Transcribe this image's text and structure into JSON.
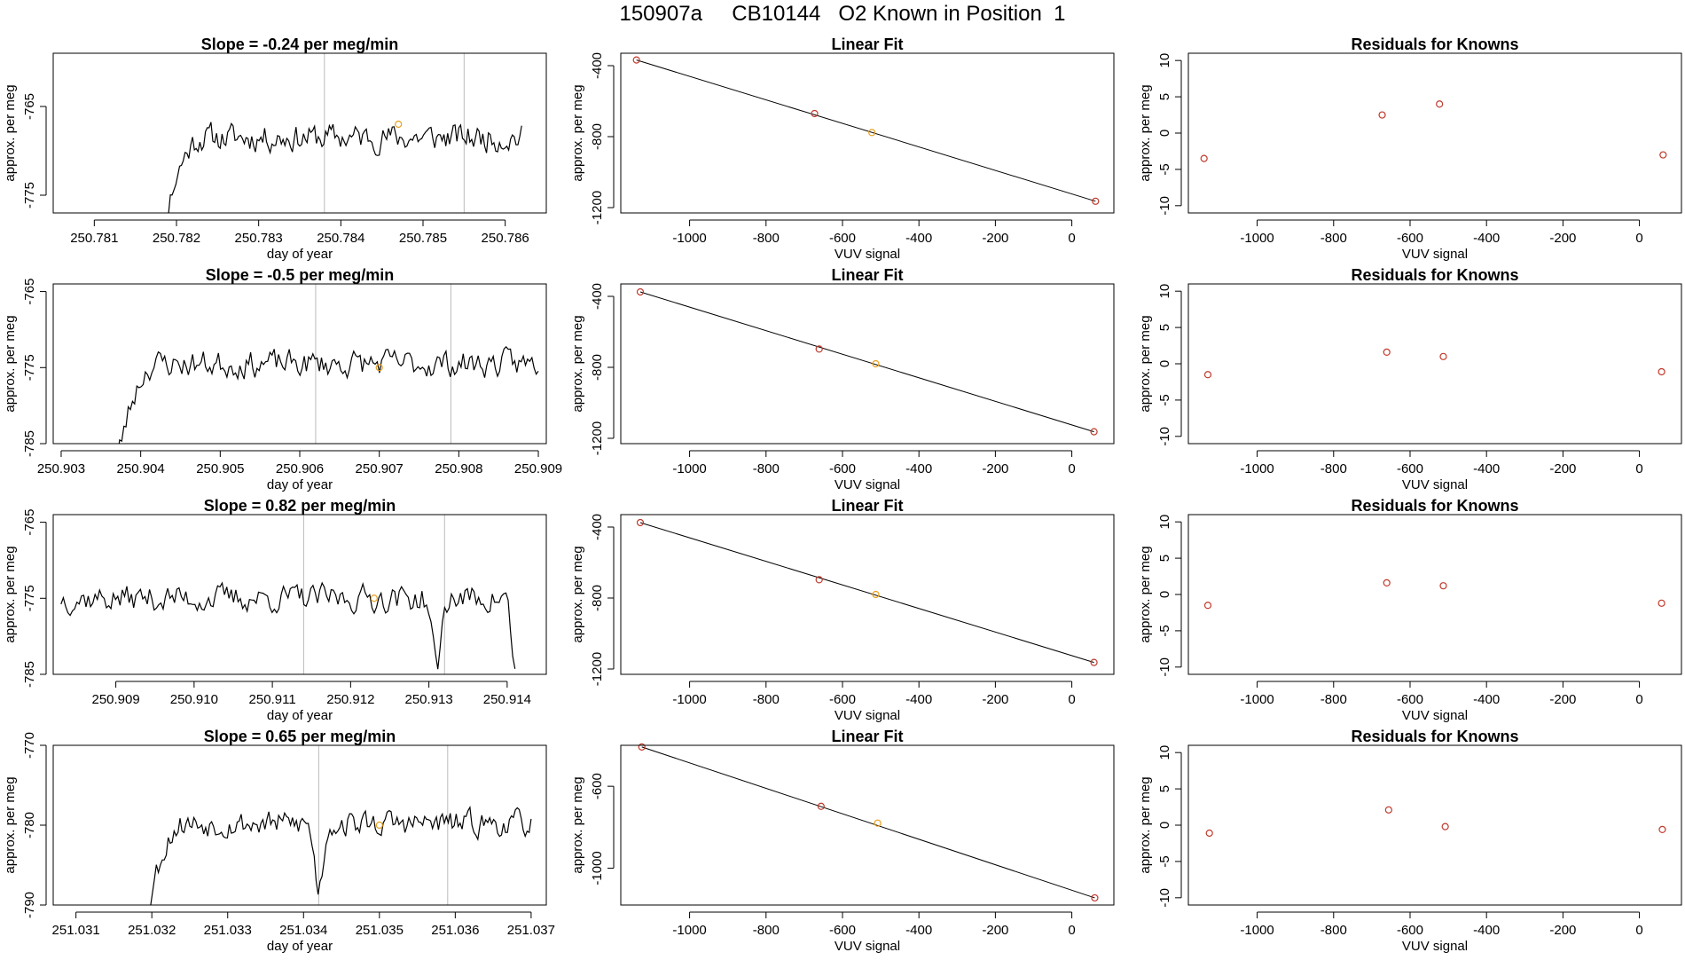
{
  "page": {
    "title": "150907a     CB10144   O2 Known in Position  1"
  },
  "colors": {
    "trace": "#000000",
    "marker_orange": "#e8a020",
    "marker_red": "#c0392b",
    "vline": "#bbbbbb"
  },
  "chart_data": [
    {
      "type": "line",
      "row": 0,
      "col": 0,
      "title": "Slope =  -0.24  per meg/min",
      "xlabel": "day of year",
      "ylabel": "approx. per meg",
      "xlim": [
        250.7805,
        250.7865
      ],
      "ylim": [
        -777,
        -759
      ],
      "xticks": [
        250.781,
        250.782,
        250.783,
        250.784,
        250.785,
        250.786
      ],
      "xtick_labels": [
        "250.781",
        "250.782",
        "250.783",
        "250.784",
        "250.785",
        "250.786"
      ],
      "yticks": [
        -775,
        -765
      ],
      "ytick_labels": [
        "-775",
        "-765"
      ],
      "trace": {
        "x_start": 250.7817,
        "x_end": 250.7862,
        "seed": 11,
        "base": -768.5,
        "amp": 2.4,
        "ramp": 0.14,
        "dips": []
      },
      "vlines": [
        250.7838,
        250.7855
      ],
      "marker": {
        "x": 250.7847,
        "y": -767
      }
    },
    {
      "type": "line",
      "row": 0,
      "col": 1,
      "title": "Linear Fit",
      "xlabel": "VUV signal",
      "ylabel": "approx. per meg",
      "xlim": [
        -1180,
        110
      ],
      "ylim": [
        -1230,
        -330
      ],
      "xticks": [
        -1000,
        -800,
        -600,
        -400,
        -200,
        0
      ],
      "xtick_labels": [
        "-1000",
        "-800",
        "-600",
        "-400",
        "-200",
        "0"
      ],
      "yticks": [
        -1200,
        -800,
        -400
      ],
      "ytick_labels": [
        "-1200",
        "-800",
        "-400"
      ],
      "points": [
        {
          "x": -1139,
          "y": -368
        },
        {
          "x": -673,
          "y": -670
        },
        {
          "x": -523,
          "y": -777
        },
        {
          "x": 62,
          "y": -1164
        }
      ],
      "fit": [
        {
          "x": -1139,
          "y": -368
        },
        {
          "x": 62,
          "y": -1164
        }
      ]
    },
    {
      "type": "scatter",
      "row": 0,
      "col": 2,
      "title": "Residuals for Knowns",
      "xlabel": "VUV signal",
      "ylabel": "approx. per meg",
      "xlim": [
        -1180,
        110
      ],
      "ylim": [
        -11,
        11
      ],
      "xticks": [
        -1000,
        -800,
        -600,
        -400,
        -200,
        0
      ],
      "xtick_labels": [
        "-1000",
        "-800",
        "-600",
        "-400",
        "-200",
        "0"
      ],
      "yticks": [
        -10,
        -5,
        0,
        5,
        10
      ],
      "ytick_labels": [
        "-10",
        "-5",
        "0",
        "5",
        "10"
      ],
      "points": [
        {
          "x": -1139,
          "y": -3.5
        },
        {
          "x": -673,
          "y": 2.5
        },
        {
          "x": -523,
          "y": 4.0
        },
        {
          "x": 62,
          "y": -3.0
        }
      ]
    },
    {
      "type": "line",
      "row": 1,
      "col": 0,
      "title": "Slope =  -0.5  per meg/min",
      "xlabel": "day of year",
      "ylabel": "approx. per meg",
      "xlim": [
        250.9029,
        250.9091
      ],
      "ylim": [
        -785,
        -764
      ],
      "xticks": [
        250.903,
        250.904,
        250.905,
        250.906,
        250.907,
        250.908,
        250.909
      ],
      "xtick_labels": [
        "250.903",
        "250.904",
        "250.905",
        "250.906",
        "250.907",
        "250.908",
        "250.909"
      ],
      "yticks": [
        -785,
        -775,
        -765
      ],
      "ytick_labels": [
        "-785",
        "-775",
        "-765"
      ],
      "trace": {
        "x_start": 250.9036,
        "x_end": 250.909,
        "seed": 23,
        "base": -774.5,
        "amp": 2.8,
        "ramp": 0.11,
        "dips": []
      },
      "vlines": [
        250.9062,
        250.9079
      ],
      "marker": {
        "x": 250.907,
        "y": -775
      }
    },
    {
      "type": "line",
      "row": 1,
      "col": 1,
      "title": "Linear Fit",
      "xlabel": "VUV signal",
      "ylabel": "approx. per meg",
      "xlim": [
        -1180,
        110
      ],
      "ylim": [
        -1230,
        -330
      ],
      "xticks": [
        -1000,
        -800,
        -600,
        -400,
        -200,
        0
      ],
      "xtick_labels": [
        "-1000",
        "-800",
        "-600",
        "-400",
        "-200",
        "0"
      ],
      "yticks": [
        -1200,
        -800,
        -400
      ],
      "ytick_labels": [
        "-1200",
        "-800",
        "-400"
      ],
      "points": [
        {
          "x": -1129,
          "y": -375
        },
        {
          "x": -661,
          "y": -697
        },
        {
          "x": -513,
          "y": -780
        },
        {
          "x": 58,
          "y": -1163
        }
      ],
      "fit": [
        {
          "x": -1129,
          "y": -375
        },
        {
          "x": 58,
          "y": -1163
        }
      ]
    },
    {
      "type": "scatter",
      "row": 1,
      "col": 2,
      "title": "Residuals for Knowns",
      "xlabel": "VUV signal",
      "ylabel": "approx. per meg",
      "xlim": [
        -1180,
        110
      ],
      "ylim": [
        -11,
        11
      ],
      "xticks": [
        -1000,
        -800,
        -600,
        -400,
        -200,
        0
      ],
      "xtick_labels": [
        "-1000",
        "-800",
        "-600",
        "-400",
        "-200",
        "0"
      ],
      "yticks": [
        -10,
        -5,
        0,
        5,
        10
      ],
      "ytick_labels": [
        "-10",
        "-5",
        "0",
        "5",
        "10"
      ],
      "points": [
        {
          "x": -1129,
          "y": -1.5
        },
        {
          "x": -661,
          "y": 1.6
        },
        {
          "x": -513,
          "y": 1.0
        },
        {
          "x": 58,
          "y": -1.1
        }
      ]
    },
    {
      "type": "line",
      "row": 2,
      "col": 0,
      "title": "Slope =  0.82  per meg/min",
      "xlabel": "day of year",
      "ylabel": "approx. per meg",
      "xlim": [
        250.9082,
        250.9145
      ],
      "ylim": [
        -785,
        -764
      ],
      "xticks": [
        250.909,
        250.91,
        250.911,
        250.912,
        250.913,
        250.914
      ],
      "xtick_labels": [
        "250.909",
        "250.910",
        "250.911",
        "250.912",
        "250.913",
        "250.914"
      ],
      "yticks": [
        -785,
        -775,
        -765
      ],
      "ytick_labels": [
        "-785",
        "-775",
        "-765"
      ],
      "trace": {
        "x_start": 250.9083,
        "x_end": 250.9141,
        "seed": 37,
        "base": -775,
        "amp": 2.8,
        "ramp": 0,
        "dips": [
          {
            "x": 250.9131,
            "depth": 9,
            "w": 8e-05
          },
          {
            "x": 250.9141,
            "depth": 10,
            "w": 6e-05
          }
        ]
      },
      "vlines": [
        250.9114,
        250.9132
      ],
      "marker": {
        "x": 250.9123,
        "y": -775
      }
    },
    {
      "type": "line",
      "row": 2,
      "col": 1,
      "title": "Linear Fit",
      "xlabel": "VUV signal",
      "ylabel": "approx. per meg",
      "xlim": [
        -1180,
        110
      ],
      "ylim": [
        -1230,
        -330
      ],
      "xticks": [
        -1000,
        -800,
        -600,
        -400,
        -200,
        0
      ],
      "xtick_labels": [
        "-1000",
        "-800",
        "-600",
        "-400",
        "-200",
        "0"
      ],
      "yticks": [
        -1200,
        -800,
        -400
      ],
      "ytick_labels": [
        "-1200",
        "-800",
        "-400"
      ],
      "points": [
        {
          "x": -1129,
          "y": -375
        },
        {
          "x": -661,
          "y": -697
        },
        {
          "x": -513,
          "y": -780
        },
        {
          "x": 58,
          "y": -1163
        }
      ],
      "fit": [
        {
          "x": -1129,
          "y": -375
        },
        {
          "x": 58,
          "y": -1163
        }
      ]
    },
    {
      "type": "scatter",
      "row": 2,
      "col": 2,
      "title": "Residuals for Knowns",
      "xlabel": "VUV signal",
      "ylabel": "approx. per meg",
      "xlim": [
        -1180,
        110
      ],
      "ylim": [
        -11,
        11
      ],
      "xticks": [
        -1000,
        -800,
        -600,
        -400,
        -200,
        0
      ],
      "xtick_labels": [
        "-1000",
        "-800",
        "-600",
        "-400",
        "-200",
        "0"
      ],
      "yticks": [
        -10,
        -5,
        0,
        5,
        10
      ],
      "ytick_labels": [
        "-10",
        "-5",
        "0",
        "5",
        "10"
      ],
      "points": [
        {
          "x": -1129,
          "y": -1.5
        },
        {
          "x": -661,
          "y": 1.6
        },
        {
          "x": -513,
          "y": 1.2
        },
        {
          "x": 58,
          "y": -1.2
        }
      ]
    },
    {
      "type": "line",
      "row": 3,
      "col": 0,
      "title": "Slope =  0.65  per meg/min",
      "xlabel": "day of year",
      "ylabel": "approx. per meg",
      "xlim": [
        251.0307,
        251.0372
      ],
      "ylim": [
        -790,
        -770
      ],
      "xticks": [
        251.031,
        251.032,
        251.033,
        251.034,
        251.035,
        251.036,
        251.037
      ],
      "xtick_labels": [
        "251.031",
        "251.032",
        "251.033",
        "251.034",
        "251.035",
        "251.036",
        "251.037"
      ],
      "yticks": [
        -790,
        -780,
        -770
      ],
      "ytick_labels": [
        "-790",
        "-780",
        "-770"
      ],
      "trace": {
        "x_start": 251.0318,
        "x_end": 251.037,
        "seed": 53,
        "base": -779.8,
        "amp": 2.5,
        "ramp": 0.12,
        "dips": [
          {
            "x": 251.0342,
            "depth": 8,
            "w": 8e-05
          }
        ]
      },
      "vlines": [
        251.0342,
        251.0359
      ],
      "marker": {
        "x": 251.035,
        "y": -780
      }
    },
    {
      "type": "line",
      "row": 3,
      "col": 1,
      "title": "Linear Fit",
      "xlabel": "VUV signal",
      "ylabel": "approx. per meg",
      "xlim": [
        -1180,
        110
      ],
      "ylim": [
        -1180,
        -400
      ],
      "xticks": [
        -1000,
        -800,
        -600,
        -400,
        -200,
        0
      ],
      "xtick_labels": [
        "-1000",
        "-800",
        "-600",
        "-400",
        "-200",
        "0"
      ],
      "yticks": [
        -1000,
        -600
      ],
      "ytick_labels": [
        "-1000",
        "-600"
      ],
      "points": [
        {
          "x": -1125,
          "y": -408
        },
        {
          "x": -656,
          "y": -698
        },
        {
          "x": -508,
          "y": -780
        },
        {
          "x": 60,
          "y": -1145
        }
      ],
      "fit": [
        {
          "x": -1125,
          "y": -408
        },
        {
          "x": 60,
          "y": -1145
        }
      ]
    },
    {
      "type": "scatter",
      "row": 3,
      "col": 2,
      "title": "Residuals for Knowns",
      "xlabel": "VUV signal",
      "ylabel": "approx. per meg",
      "xlim": [
        -1180,
        110
      ],
      "ylim": [
        -11,
        11
      ],
      "xticks": [
        -1000,
        -800,
        -600,
        -400,
        -200,
        0
      ],
      "xtick_labels": [
        "-1000",
        "-800",
        "-600",
        "-400",
        "-200",
        "0"
      ],
      "yticks": [
        -10,
        -5,
        0,
        5,
        10
      ],
      "ytick_labels": [
        "-10",
        "-5",
        "0",
        "5",
        "10"
      ],
      "points": [
        {
          "x": -1125,
          "y": -1.1
        },
        {
          "x": -656,
          "y": 2.1
        },
        {
          "x": -508,
          "y": -0.2
        },
        {
          "x": 60,
          "y": -0.6
        }
      ]
    }
  ]
}
